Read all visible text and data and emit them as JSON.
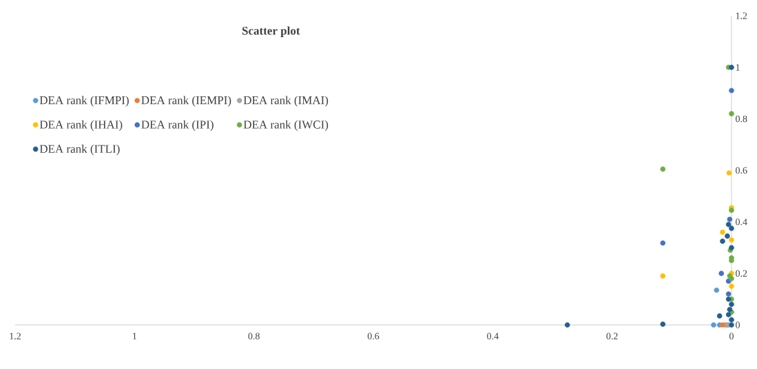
{
  "chart_data": {
    "type": "scatter",
    "title": "Scatter plot",
    "xlim": [
      1.2,
      0
    ],
    "ylim": [
      0,
      1.2
    ],
    "xticks": [
      1.2,
      1,
      0.8,
      0.6,
      0.4,
      0.2,
      0
    ],
    "yticks": [
      0,
      0.2,
      0.4,
      0.6,
      0.8,
      1,
      1.2
    ],
    "grid": false,
    "legend": "top left",
    "marker": "circle",
    "series": [
      {
        "name": "DEA rank (IFMPI)",
        "color": "#5b9bd5",
        "x": [
          0.025,
          0.03,
          0.02
        ],
        "values": [
          0.135,
          0.0,
          0.0
        ]
      },
      {
        "name": "DEA rank (IEMPI)",
        "color": "#ed7d31",
        "x": [
          0.015,
          0.01
        ],
        "values": [
          0.0,
          0.0
        ]
      },
      {
        "name": "DEA rank (IMAI)",
        "color": "#a5a5a5",
        "x": [
          0.007,
          0.005
        ],
        "values": [
          0.0,
          0.0
        ]
      },
      {
        "name": "DEA rank (IHAI)",
        "color": "#ffc000",
        "x": [
          0.004,
          0.115,
          0.0,
          0.015,
          0.0,
          0.0,
          0.0
        ],
        "values": [
          0.59,
          0.19,
          0.455,
          0.36,
          0.33,
          0.2,
          0.15
        ]
      },
      {
        "name": "DEA rank (IPI)",
        "color": "#4472c4",
        "x": [
          0.0,
          0.115,
          0.003,
          0.017,
          0.005,
          0.005
        ],
        "values": [
          0.91,
          0.318,
          0.41,
          0.2,
          0.12,
          0.17
        ]
      },
      {
        "name": "DEA rank (IWCI)",
        "color": "#70ad47",
        "x": [
          0.005,
          0.0,
          0.115,
          0.0,
          0.002,
          0.0,
          0.0,
          0.003,
          0.0,
          0.0,
          0.0
        ],
        "values": [
          1.0,
          0.82,
          0.605,
          0.445,
          0.29,
          0.26,
          0.25,
          0.19,
          0.18,
          0.1,
          0.05
        ]
      },
      {
        "name": "DEA rank (ITLI)",
        "color": "#255e91",
        "x": [
          0.0,
          0.275,
          0.115,
          0.005,
          0.007,
          0.015,
          0.0,
          0.0,
          0.02,
          0.005,
          0.0,
          0.003,
          0.0,
          0.0,
          0.005
        ],
        "values": [
          1.0,
          0.0,
          0.003,
          0.39,
          0.345,
          0.325,
          0.375,
          0.3,
          0.035,
          0.1,
          0.08,
          0.06,
          0.02,
          0.0,
          0.04
        ]
      }
    ]
  }
}
